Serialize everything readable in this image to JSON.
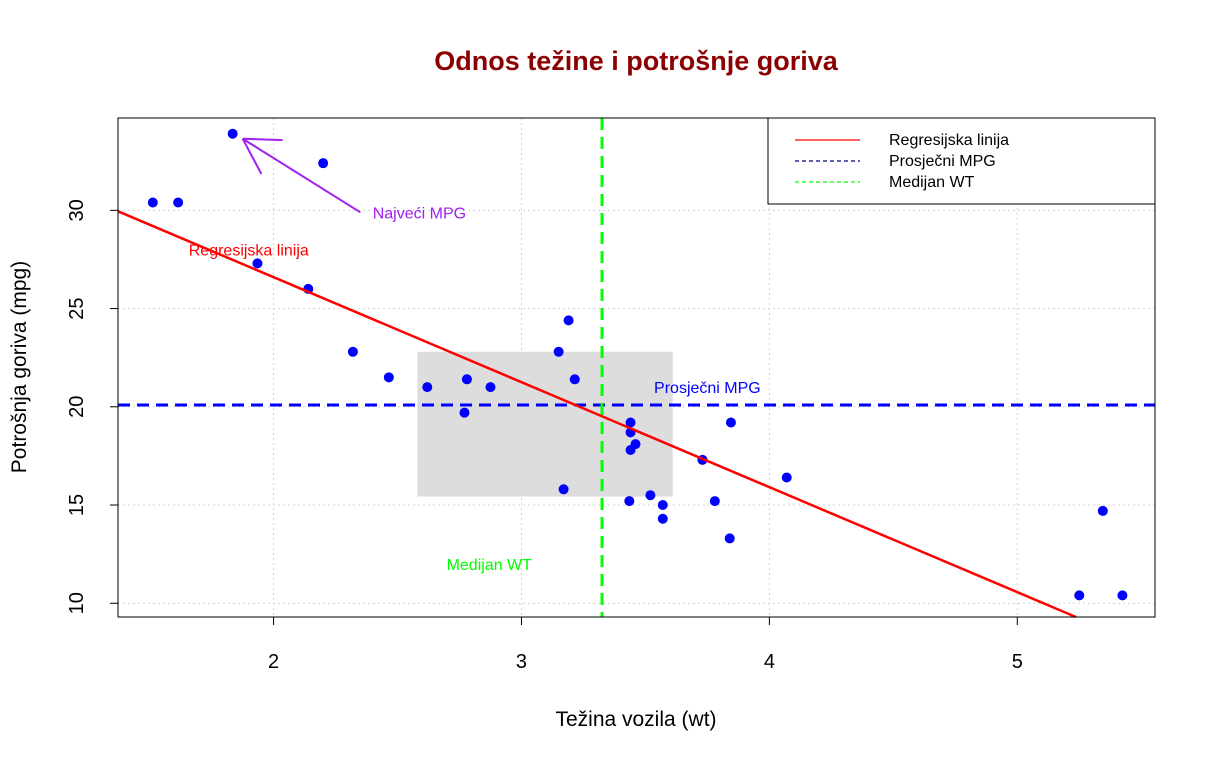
{
  "chart_data": {
    "type": "scatter",
    "title": "Odnos težine i potrošnje goriva",
    "xlabel": "Težina vozila (wt)",
    "ylabel": "Potrošnja goriva (mpg)",
    "xlim": [
      1.3725,
      5.5555
    ],
    "ylim": [
      9.3,
      34.7
    ],
    "x_ticks": [
      2,
      3,
      4,
      5
    ],
    "y_ticks": [
      10,
      15,
      20,
      25,
      30
    ],
    "grid": true,
    "legend_position": "top-right",
    "colors": {
      "title": "#8B0000",
      "points": "#0000FF",
      "regression": "#FF0000",
      "mean_line": "#0000FF",
      "median_line": "#00FF00",
      "arrow": "#A020F0",
      "rect": "#DDDDDD"
    },
    "points": [
      {
        "x": 2.62,
        "y": 21.0
      },
      {
        "x": 2.875,
        "y": 21.0
      },
      {
        "x": 2.32,
        "y": 22.8
      },
      {
        "x": 3.215,
        "y": 21.4
      },
      {
        "x": 3.44,
        "y": 18.7
      },
      {
        "x": 3.46,
        "y": 18.1
      },
      {
        "x": 3.57,
        "y": 14.3
      },
      {
        "x": 3.19,
        "y": 24.4
      },
      {
        "x": 3.15,
        "y": 22.8
      },
      {
        "x": 3.44,
        "y": 19.2
      },
      {
        "x": 3.44,
        "y": 17.8
      },
      {
        "x": 4.07,
        "y": 16.4
      },
      {
        "x": 3.73,
        "y": 17.3
      },
      {
        "x": 3.78,
        "y": 15.2
      },
      {
        "x": 5.25,
        "y": 10.4
      },
      {
        "x": 5.424,
        "y": 10.4
      },
      {
        "x": 5.345,
        "y": 14.7
      },
      {
        "x": 2.2,
        "y": 32.4
      },
      {
        "x": 1.615,
        "y": 30.4
      },
      {
        "x": 1.835,
        "y": 33.9
      },
      {
        "x": 2.465,
        "y": 21.5
      },
      {
        "x": 3.52,
        "y": 15.5
      },
      {
        "x": 3.435,
        "y": 15.2
      },
      {
        "x": 3.84,
        "y": 13.3
      },
      {
        "x": 3.845,
        "y": 19.2
      },
      {
        "x": 1.935,
        "y": 27.3
      },
      {
        "x": 2.14,
        "y": 26.0
      },
      {
        "x": 1.513,
        "y": 30.4
      },
      {
        "x": 3.17,
        "y": 15.8
      },
      {
        "x": 2.77,
        "y": 19.7
      },
      {
        "x": 3.57,
        "y": 15.0
      },
      {
        "x": 2.78,
        "y": 21.4
      }
    ],
    "regression": {
      "intercept": 37.285,
      "slope": -5.344
    },
    "mean_mpg": 20.09,
    "median_wt": 3.325,
    "highlight_rect": {
      "x0": 2.58,
      "x1": 3.61,
      "y0": 15.43,
      "y1": 22.8
    },
    "arrow": {
      "from": [
        2.35,
        29.9
      ],
      "to": [
        1.835,
        33.9
      ]
    },
    "annotations": {
      "regression_label": {
        "text": "Regresijska linija",
        "x": 1.9,
        "y": 28.0
      },
      "max_label": {
        "text": "Najveći MPG",
        "x": 2.4,
        "y": 29.9
      },
      "mean_label": {
        "text": "Prosječni MPG",
        "x": 3.75,
        "y": 21.0
      },
      "median_label": {
        "text": "Medijan WT",
        "x": 2.87,
        "y": 12.0
      }
    },
    "legend": [
      {
        "label": "Regresijska linija",
        "style": "solid",
        "color": "#FF0000"
      },
      {
        "label": "Prosječni MPG",
        "style": "dashed",
        "color": "#00008B"
      },
      {
        "label": "Medijan WT",
        "style": "dashed",
        "color": "#00FF00"
      }
    ]
  }
}
